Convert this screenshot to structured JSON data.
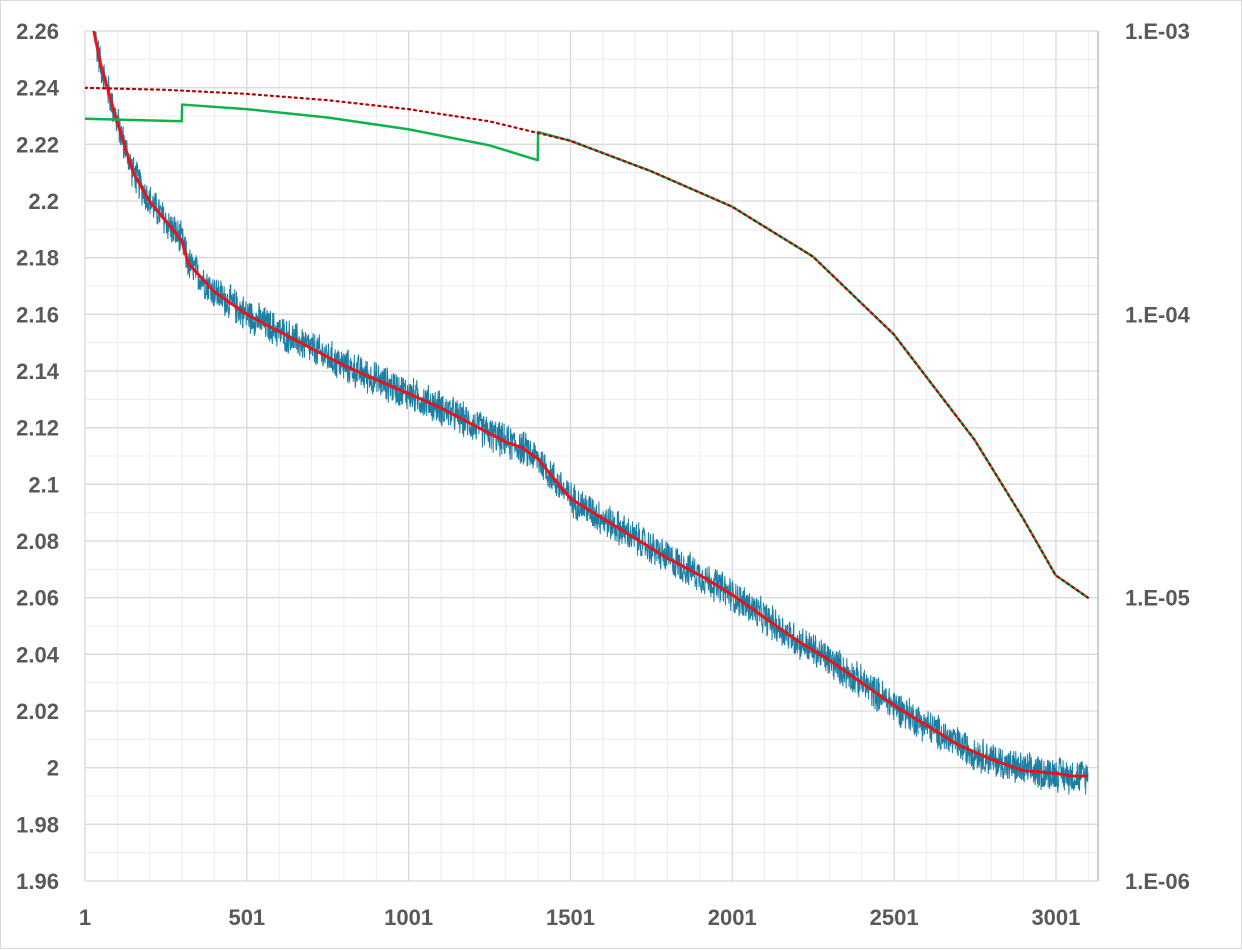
{
  "chart_data": {
    "type": "line",
    "title": "",
    "xlabel": "",
    "ylabel": "",
    "y2label": "",
    "x_ticks": [
      "1",
      "501",
      "1001",
      "1501",
      "2001",
      "2501",
      "3001"
    ],
    "y_ticks": [
      "2.26",
      "2.24",
      "2.22",
      "2.2",
      "2.18",
      "2.16",
      "2.14",
      "2.12",
      "2.1",
      "2.08",
      "2.06",
      "2.04",
      "2.02",
      "2",
      "1.98",
      "1.96"
    ],
    "y2_ticks": [
      "1.E-03",
      "1.E-04",
      "1.E-05",
      "1.E-06"
    ],
    "xlim": [
      1,
      3131
    ],
    "ylim": [
      1.96,
      2.26
    ],
    "y2lim": [
      1e-06,
      0.001
    ],
    "y2_scale": "log",
    "grid": true,
    "legend": "none",
    "series": [
      {
        "axis": "left",
        "style": "noisy-line",
        "color": "#1a7fa3",
        "x": [
          1,
          50,
          100,
          150,
          200,
          250,
          300,
          320,
          400,
          501,
          600,
          700,
          800,
          900,
          1001,
          1100,
          1200,
          1300,
          1350,
          1401,
          1450,
          1501,
          1600,
          1700,
          1800,
          1900,
          2001,
          2100,
          2200,
          2300,
          2400,
          2501,
          2600,
          2700,
          2800,
          2900,
          3001,
          3050,
          3100
        ],
        "y": [
          2.275,
          2.248,
          2.228,
          2.21,
          2.2,
          2.193,
          2.186,
          2.178,
          2.168,
          2.16,
          2.154,
          2.148,
          2.142,
          2.137,
          2.132,
          2.127,
          2.121,
          2.115,
          2.113,
          2.109,
          2.102,
          2.095,
          2.088,
          2.081,
          2.074,
          2.068,
          2.061,
          2.053,
          2.045,
          2.038,
          2.03,
          2.022,
          2.015,
          2.008,
          2.003,
          1.999,
          1.998,
          1.997,
          1.997
        ],
        "noise_amplitude": 0.007
      },
      {
        "axis": "left",
        "style": "smooth-line",
        "color": "#e8141c",
        "x": [
          1,
          50,
          100,
          150,
          200,
          250,
          300,
          320,
          400,
          501,
          600,
          700,
          800,
          900,
          1001,
          1100,
          1200,
          1300,
          1350,
          1401,
          1450,
          1501,
          1600,
          1700,
          1800,
          1900,
          2001,
          2100,
          2200,
          2300,
          2400,
          2501,
          2600,
          2700,
          2800,
          2900,
          3001,
          3050,
          3100
        ],
        "y": [
          2.275,
          2.248,
          2.228,
          2.21,
          2.2,
          2.193,
          2.186,
          2.178,
          2.168,
          2.16,
          2.154,
          2.148,
          2.142,
          2.137,
          2.132,
          2.127,
          2.121,
          2.115,
          2.113,
          2.109,
          2.102,
          2.095,
          2.088,
          2.081,
          2.074,
          2.068,
          2.061,
          2.053,
          2.045,
          2.038,
          2.03,
          2.022,
          2.015,
          2.008,
          2.003,
          1.999,
          1.998,
          1.997,
          1.997
        ]
      },
      {
        "axis": "right",
        "style": "line",
        "color": "#10b24c",
        "x": [
          1,
          150,
          300,
          301,
          500,
          750,
          1000,
          1250,
          1400,
          1401,
          1500,
          1750,
          2000,
          2250,
          2500,
          2750,
          2900,
          3000,
          3100
        ],
        "y": [
          0.00049,
          0.000485,
          0.00048,
          0.00055,
          0.00053,
          0.000495,
          0.00045,
          0.000395,
          0.00035,
          0.00044,
          0.00041,
          0.00032,
          0.00024,
          0.00016,
          8.5e-05,
          3.6e-05,
          1.9e-05,
          1.2e-05,
          1e-05
        ]
      },
      {
        "axis": "right",
        "style": "dotted",
        "color": "#b30000",
        "x": [
          1,
          250,
          500,
          750,
          1000,
          1250,
          1500,
          1750,
          2000,
          2250,
          2500,
          2750,
          2900,
          3000,
          3100
        ],
        "y": [
          0.00063,
          0.00062,
          0.0006,
          0.00057,
          0.00053,
          0.00048,
          0.00041,
          0.00032,
          0.00024,
          0.00016,
          8.5e-05,
          3.6e-05,
          1.9e-05,
          1.2e-05,
          1e-05
        ]
      }
    ]
  }
}
